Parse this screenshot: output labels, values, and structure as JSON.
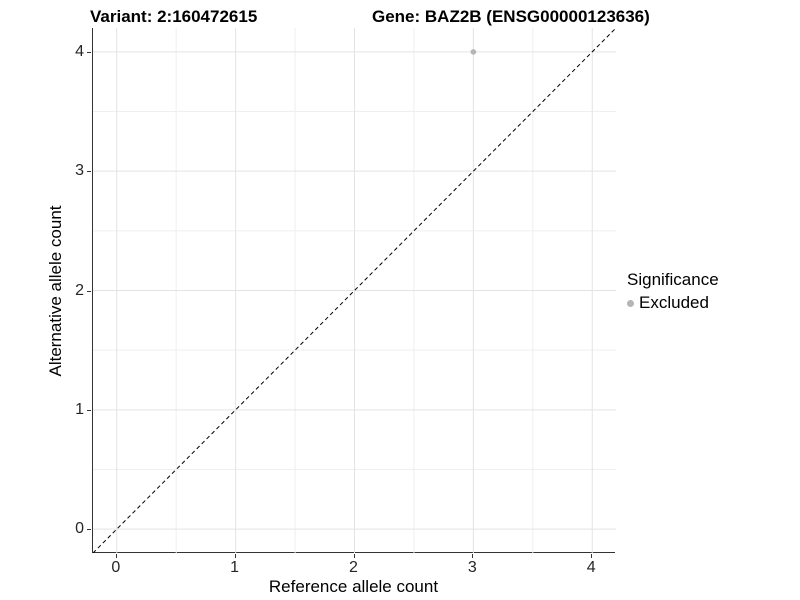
{
  "titles": {
    "variant": "Variant: 2:160472615",
    "gene": "Gene: BAZ2B (ENSG00000123636)"
  },
  "chart_data": {
    "type": "scatter",
    "xlabel": "Reference allele count",
    "ylabel": "Alternative allele count",
    "xlim": [
      -0.2,
      4.2
    ],
    "ylim": [
      -0.2,
      4.2
    ],
    "x_ticks": [
      0,
      1,
      2,
      3,
      4
    ],
    "y_ticks": [
      0,
      1,
      2,
      3,
      4
    ],
    "minor_ticks": [
      0.5,
      1.5,
      2.5,
      3.5
    ],
    "grid": true,
    "colors": {
      "major_grid": "#e3e3e3",
      "minor_grid": "#efefef",
      "axis_line": "#333333",
      "reference_line": "#000000"
    },
    "reference_line": {
      "type": "identity",
      "style": "dashed"
    },
    "series": [
      {
        "name": "Excluded",
        "color": "#b5b5b5",
        "points": [
          {
            "x": 3,
            "y": 4
          }
        ]
      }
    ],
    "legend": {
      "title": "Significance",
      "position": "right",
      "items": [
        {
          "label": "Excluded",
          "color": "#b5b5b5"
        }
      ]
    }
  }
}
